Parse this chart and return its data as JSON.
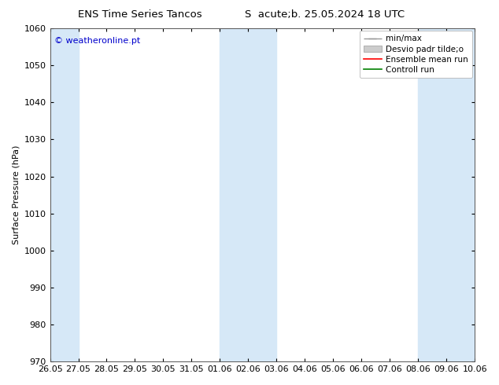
{
  "title_left": "ENS Time Series Tancos",
  "title_right": "S  acute;b. 25.05.2024 18 UTC",
  "ylabel": "Surface Pressure (hPa)",
  "ylim": [
    970,
    1060
  ],
  "yticks": [
    970,
    980,
    990,
    1000,
    1010,
    1020,
    1030,
    1040,
    1050,
    1060
  ],
  "xlabel_ticks": [
    "26.05",
    "27.05",
    "28.05",
    "29.05",
    "30.05",
    "31.05",
    "01.06",
    "02.06",
    "03.06",
    "04.06",
    "05.06",
    "06.06",
    "07.06",
    "08.06",
    "09.06",
    "10.06"
  ],
  "shaded_color": "#d6e8f7",
  "shaded_ranges": [
    [
      0,
      1
    ],
    [
      6,
      8
    ],
    [
      13,
      15
    ]
  ],
  "watermark": "© weatheronline.pt",
  "watermark_color": "#0000cc",
  "bg_color": "#ffffff",
  "legend_label_minmax": "min/max",
  "legend_label_desvio": "Desvio padr tilde;o",
  "legend_label_ensemble": "Ensemble mean run",
  "legend_label_controll": "Controll run",
  "color_minmax": "#999999",
  "color_desvio": "#cccccc",
  "color_ensemble": "#ff0000",
  "color_controll": "#008000",
  "font_size": 8,
  "title_font_size": 9.5
}
